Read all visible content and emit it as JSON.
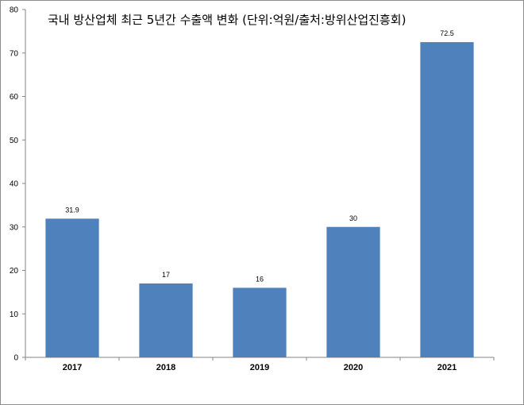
{
  "chart_data": {
    "type": "bar",
    "title": "국내 방산업체 최근 5년간 수출액 변화 (단위:억원/출처:방위산업진흥회)",
    "categories": [
      "2017",
      "2018",
      "2019",
      "2020",
      "2021"
    ],
    "values": [
      31.9,
      17,
      16,
      30,
      72.5
    ],
    "data_labels": [
      "31.9",
      "17",
      "16",
      "30",
      "72.5"
    ],
    "ylim": [
      0,
      80
    ],
    "yticks": [
      0,
      10,
      20,
      30,
      40,
      50,
      60,
      70,
      80
    ],
    "grid": false,
    "legend": "none",
    "bar_color": "#4f81bd"
  }
}
